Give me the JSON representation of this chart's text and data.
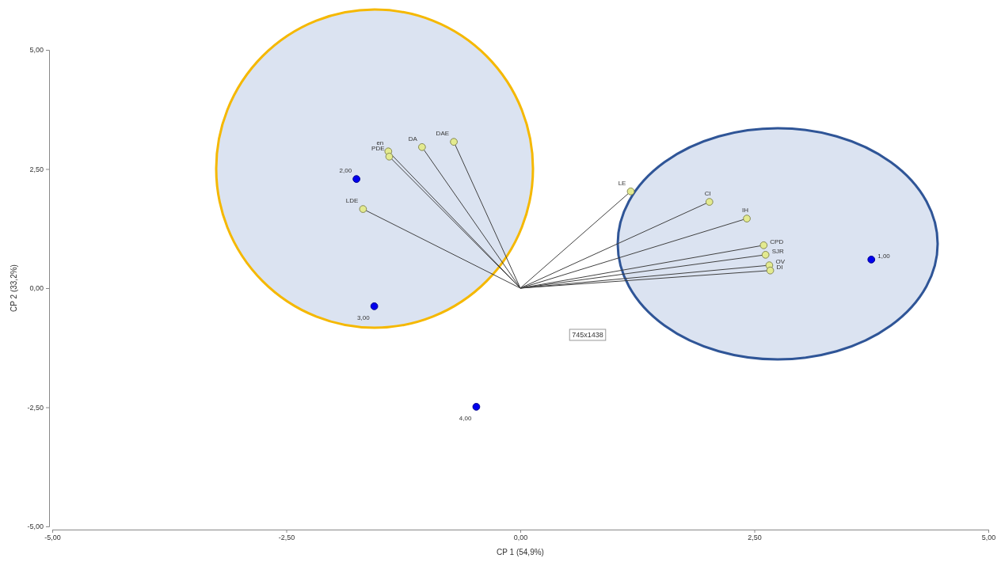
{
  "chart_data": {
    "type": "scatter",
    "xlabel": "CP 1 (54,9%)",
    "ylabel": "CP 2 (33,2%)",
    "xlim": [
      -5,
      5
    ],
    "ylim": [
      -5,
      5
    ],
    "xticks": [
      {
        "value": -5,
        "label": "-5,00"
      },
      {
        "value": -2.5,
        "label": "-2,50"
      },
      {
        "value": 0,
        "label": "0,00"
      },
      {
        "value": 2.5,
        "label": "2,50"
      },
      {
        "value": 5,
        "label": "5,00"
      }
    ],
    "yticks": [
      {
        "value": -5,
        "label": "-5,00"
      },
      {
        "value": -2.5,
        "label": "-2,50"
      },
      {
        "value": 0,
        "label": "0,00"
      },
      {
        "value": 2.5,
        "label": "2,50"
      },
      {
        "value": 5,
        "label": "5,00"
      }
    ],
    "grid": false,
    "marker": "circle",
    "series": [
      {
        "type": "line",
        "marker": "none",
        "color": "#404040",
        "x": [
          0,
          -1.41
        ],
        "values": [
          0,
          2.87
        ]
      },
      {
        "type": "line",
        "marker": "none",
        "color": "#404040",
        "x": [
          0,
          -1.4
        ],
        "values": [
          0,
          2.76
        ]
      },
      {
        "type": "line",
        "marker": "none",
        "color": "#404040",
        "x": [
          0,
          -1.05
        ],
        "values": [
          0,
          2.96
        ]
      },
      {
        "type": "line",
        "marker": "none",
        "color": "#404040",
        "x": [
          0,
          -0.71
        ],
        "values": [
          0,
          3.07
        ]
      },
      {
        "type": "line",
        "marker": "none",
        "color": "#404040",
        "x": [
          0,
          -1.68
        ],
        "values": [
          0,
          1.66
        ]
      },
      {
        "type": "line",
        "marker": "none",
        "color": "#404040",
        "x": [
          0,
          1.18
        ],
        "values": [
          0,
          2.03
        ]
      },
      {
        "type": "line",
        "marker": "none",
        "color": "#404040",
        "x": [
          0,
          2.02
        ],
        "values": [
          0,
          1.81
        ]
      },
      {
        "type": "line",
        "marker": "none",
        "color": "#404040",
        "x": [
          0,
          2.42
        ],
        "values": [
          0,
          1.46
        ]
      },
      {
        "type": "line",
        "marker": "none",
        "color": "#404040",
        "x": [
          0,
          2.6
        ],
        "values": [
          0,
          0.9
        ]
      },
      {
        "type": "line",
        "marker": "none",
        "color": "#404040",
        "x": [
          0,
          2.62
        ],
        "values": [
          0,
          0.7
        ]
      },
      {
        "type": "line",
        "marker": "none",
        "color": "#404040",
        "x": [
          0,
          2.66
        ],
        "values": [
          0,
          0.48
        ]
      },
      {
        "type": "line",
        "marker": "none",
        "color": "#404040",
        "x": [
          0,
          2.67
        ],
        "values": [
          0,
          0.37
        ]
      },
      {
        "color": "#e3ea8f",
        "x": [
          -1.41,
          -1.4,
          -1.05,
          -0.71,
          -1.68,
          1.18,
          2.02,
          2.42,
          2.6,
          2.62,
          2.66,
          2.67
        ],
        "values": [
          2.87,
          2.76,
          2.96,
          3.07,
          1.66,
          2.03,
          1.81,
          1.46,
          0.9,
          0.7,
          0.48,
          0.37
        ]
      },
      {
        "color": "#0000ee",
        "x": [
          3.75,
          -1.75,
          -1.56,
          -0.47
        ],
        "values": [
          0.6,
          2.29,
          -0.38,
          -2.49
        ]
      }
    ],
    "annotations": [
      {
        "text": "en",
        "x": -1.41,
        "y": 2.87
      },
      {
        "text": "PDE",
        "x": -1.4,
        "y": 2.76
      },
      {
        "text": "DA",
        "x": -1.05,
        "y": 2.96
      },
      {
        "text": "DAE",
        "x": -0.71,
        "y": 3.07
      },
      {
        "text": "LDE",
        "x": -1.68,
        "y": 1.66
      },
      {
        "text": "LE",
        "x": 1.18,
        "y": 2.03
      },
      {
        "text": "CI",
        "x": 2.02,
        "y": 1.81
      },
      {
        "text": "IH",
        "x": 2.42,
        "y": 1.46
      },
      {
        "text": "CPD",
        "x": 2.6,
        "y": 0.9
      },
      {
        "text": "SJR",
        "x": 2.62,
        "y": 0.7
      },
      {
        "text": "OV",
        "x": 2.66,
        "y": 0.48
      },
      {
        "text": "DI",
        "x": 2.67,
        "y": 0.37
      },
      {
        "text": "1,00",
        "x": 3.75,
        "y": 0.6
      },
      {
        "text": "2,00",
        "x": -1.75,
        "y": 2.29
      },
      {
        "text": "3,00",
        "x": -1.56,
        "y": -0.38
      },
      {
        "text": "4,00",
        "x": -0.47,
        "y": -2.49
      },
      "745x1438"
    ]
  }
}
